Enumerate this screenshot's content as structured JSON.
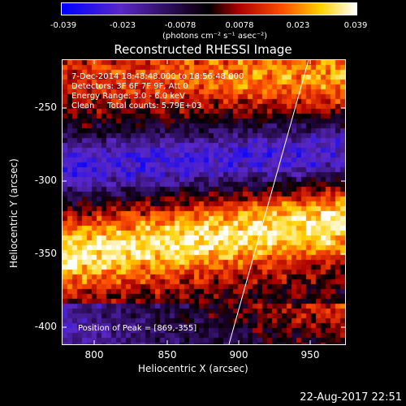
{
  "colorbar": {
    "ticks": [
      "-0.039",
      "-0.023",
      "-0.0078",
      "0.0078",
      "0.023",
      "0.039"
    ],
    "unit_label": "(photons cm⁻² s⁻¹ asec⁻²)"
  },
  "plot": {
    "title": "Reconstructed RHESSI Image",
    "info_lines": [
      "7-Dec-2014 18:48:48.000 to 18:56:48.000",
      "Detectors: 3F 6F 7F 9F, Att 0",
      "Energy Range: 3.0 - 6.0 keV",
      "Clean     Total counts: 5.79E+03"
    ],
    "peak_text": "Position of Peak = [869,-355]",
    "xlabel": "Heliocentric X (arcsec)",
    "ylabel": "Heliocentric Y (arcsec)",
    "xticks": [
      "800",
      "850",
      "900",
      "950"
    ],
    "yticks": [
      "-250",
      "-300",
      "-350",
      "-400"
    ]
  },
  "footer": {
    "datestamp": "22-Aug-2017 22:51"
  }
}
